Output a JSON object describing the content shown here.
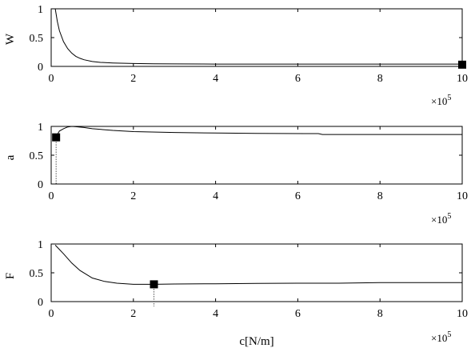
{
  "chart_data": [
    {
      "type": "line",
      "ylabel": "W",
      "xlabel": "",
      "xlim": [
        0,
        1000000
      ],
      "ylim": [
        0,
        1
      ],
      "x_ticks": [
        "0",
        "2",
        "4",
        "6",
        "8",
        "10"
      ],
      "x_tick_values": [
        0,
        200000,
        400000,
        600000,
        800000,
        1000000
      ],
      "y_ticks": [
        "0",
        "0.5",
        "1"
      ],
      "y_tick_values": [
        0,
        0.5,
        1
      ],
      "x_multiplier": "×10",
      "x_multiplier_exp": "5",
      "grid": false,
      "series": [
        {
          "x": [
            10000,
            15000,
            20000,
            30000,
            40000,
            50000,
            60000,
            70000,
            80000,
            100000,
            120000,
            150000,
            200000,
            250000,
            300000,
            400000,
            600000,
            800000,
            1000000
          ],
          "y": [
            1.0,
            0.78,
            0.62,
            0.43,
            0.31,
            0.23,
            0.175,
            0.14,
            0.115,
            0.085,
            0.07,
            0.06,
            0.05,
            0.045,
            0.043,
            0.04,
            0.04,
            0.04,
            0.04
          ]
        }
      ],
      "marker": {
        "x": 1000000,
        "y": 0.03
      }
    },
    {
      "type": "line",
      "ylabel": "a",
      "xlabel": "",
      "xlim": [
        0,
        1000000
      ],
      "ylim": [
        0,
        1
      ],
      "x_ticks": [
        "0",
        "2",
        "4",
        "6",
        "8",
        "10"
      ],
      "x_tick_values": [
        0,
        200000,
        400000,
        600000,
        800000,
        1000000
      ],
      "y_ticks": [
        "0",
        "0.5",
        "1"
      ],
      "y_tick_values": [
        0,
        0.5,
        1
      ],
      "x_multiplier": "×10",
      "x_multiplier_exp": "5",
      "grid": false,
      "series": [
        {
          "x": [
            10000,
            15000,
            20000,
            30000,
            40000,
            50000,
            60000,
            80000,
            100000,
            150000,
            200000,
            300000,
            400000,
            500000,
            650000,
            660000,
            800000,
            1000000
          ],
          "y": [
            0.81,
            0.86,
            0.92,
            0.96,
            0.99,
            1.0,
            0.995,
            0.98,
            0.96,
            0.93,
            0.91,
            0.895,
            0.885,
            0.878,
            0.875,
            0.86,
            0.86,
            0.86
          ]
        }
      ],
      "marker": {
        "x": 12000,
        "y": 0.81
      }
    },
    {
      "type": "line",
      "ylabel": "F",
      "xlabel": "c[N/m]",
      "xlim": [
        0,
        1000000
      ],
      "ylim": [
        0,
        1
      ],
      "x_ticks": [
        "0",
        "2",
        "4",
        "6",
        "8",
        "10"
      ],
      "x_tick_values": [
        0,
        200000,
        400000,
        600000,
        800000,
        1000000
      ],
      "y_ticks": [
        "0",
        "0.5",
        "1"
      ],
      "y_tick_values": [
        0,
        0.5,
        1
      ],
      "x_multiplier": "×10",
      "x_multiplier_exp": "5",
      "grid": false,
      "series": [
        {
          "x": [
            10000,
            30000,
            50000,
            70000,
            100000,
            130000,
            160000,
            200000,
            250000,
            300000,
            400000,
            500000,
            600000,
            700000,
            800000,
            1000000
          ],
          "y": [
            0.98,
            0.83,
            0.67,
            0.54,
            0.41,
            0.35,
            0.32,
            0.3,
            0.3,
            0.305,
            0.31,
            0.315,
            0.32,
            0.32,
            0.33,
            0.33
          ]
        }
      ],
      "marker": {
        "x": 250000,
        "y": 0.3
      }
    }
  ]
}
